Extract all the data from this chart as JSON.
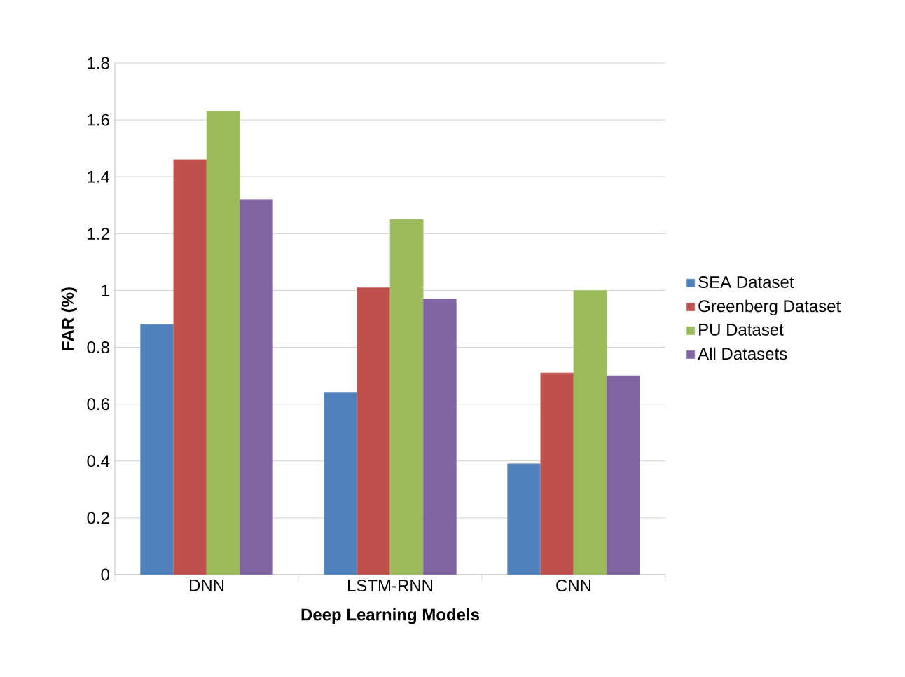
{
  "chart_data": {
    "type": "bar",
    "xlabel": "Deep Learning Models",
    "ylabel": "FAR (%)",
    "categories": [
      "DNN",
      "LSTM-RNN",
      "CNN"
    ],
    "series": [
      {
        "name": "SEA Dataset",
        "color": "#4f81bd",
        "values": [
          0.88,
          0.64,
          0.39
        ]
      },
      {
        "name": "Greenberg Dataset",
        "color": "#c0504d",
        "values": [
          1.46,
          1.01,
          0.71
        ]
      },
      {
        "name": "PU Dataset",
        "color": "#9bbb59",
        "values": [
          1.63,
          1.25,
          1.0
        ]
      },
      {
        "name": "All Datasets",
        "color": "#8064a2",
        "values": [
          1.32,
          0.97,
          0.7
        ]
      }
    ],
    "ylim": [
      0,
      1.8
    ],
    "yticks": [
      0,
      0.2,
      0.4,
      0.6,
      0.8,
      1,
      1.2,
      1.4,
      1.6,
      1.8
    ],
    "grid": "y",
    "legend": "right"
  }
}
